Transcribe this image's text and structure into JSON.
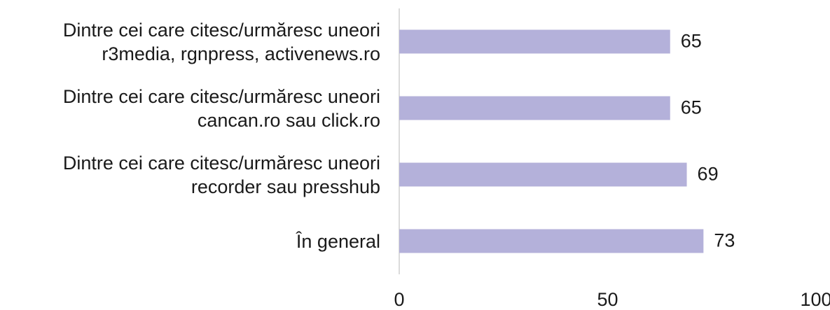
{
  "chart_data": {
    "type": "bar",
    "orientation": "horizontal",
    "categories": [
      "Dintre cei care citesc/urmăresc uneori\nr3media, rgnpress, activenews.ro",
      "Dintre cei care citesc/urmăresc uneori\ncancan.ro sau click.ro",
      "Dintre cei care citesc/urmăresc uneori\nrecorder sau presshub",
      "În general"
    ],
    "values": [
      65,
      65,
      69,
      73
    ],
    "color": "#b4b1da",
    "xlim": [
      0,
      100
    ],
    "xticks": [
      0,
      50,
      100
    ],
    "grid": false
  }
}
